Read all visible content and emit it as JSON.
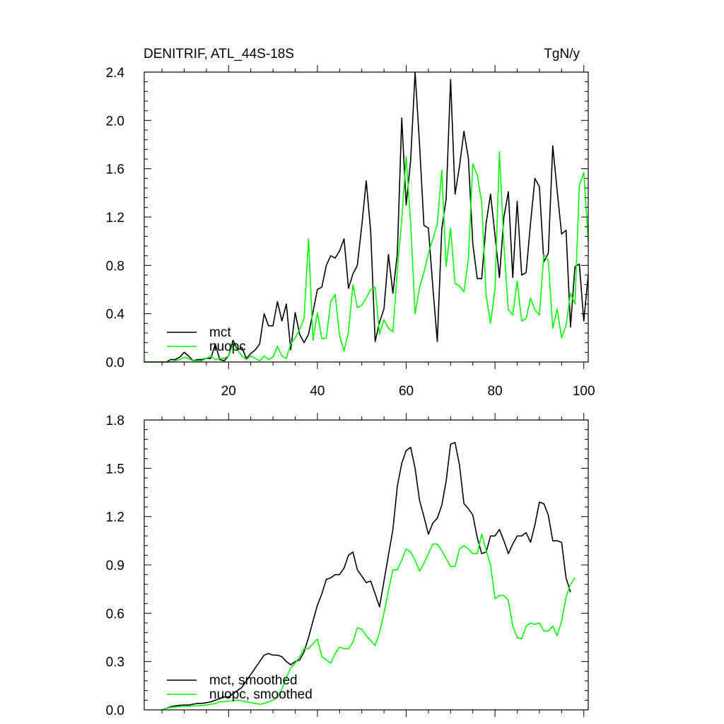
{
  "title_left": "DENITRIF, ATL_44S-18S",
  "title_right": "TgN/y",
  "chart_data": [
    {
      "type": "line",
      "title": "DENITRIF, ATL_44S-18S",
      "units": "TgN/y",
      "xlim": [
        1,
        101
      ],
      "ylim": [
        0,
        2.4
      ],
      "xticks": [
        20,
        40,
        60,
        80,
        100
      ],
      "yticks": [
        0,
        0.4,
        0.8,
        1.2,
        1.6,
        2.0,
        2.4
      ],
      "ytick_labels": [
        "0.0",
        "0.4",
        "0.8",
        "1.2",
        "1.6",
        "2.0",
        "2.4"
      ],
      "legend_location": "bottom-left",
      "series": [
        {
          "name": "mct",
          "color": "#000000",
          "x": [
            1,
            2,
            3,
            4,
            5,
            6,
            7,
            8,
            9,
            10,
            11,
            12,
            13,
            14,
            15,
            16,
            17,
            18,
            19,
            20,
            21,
            22,
            23,
            24,
            25,
            26,
            27,
            28,
            29,
            30,
            31,
            32,
            33,
            34,
            35,
            36,
            37,
            38,
            39,
            40,
            41,
            42,
            43,
            44,
            45,
            46,
            47,
            48,
            49,
            50,
            51,
            52,
            53,
            54,
            55,
            56,
            57,
            58,
            59,
            60,
            61,
            62,
            63,
            64,
            65,
            66,
            67,
            68,
            69,
            70,
            71,
            72,
            73,
            74,
            75,
            76,
            77,
            78,
            79,
            80,
            81,
            82,
            83,
            84,
            85,
            86,
            87,
            88,
            89,
            90,
            91,
            92,
            93,
            94,
            95,
            96,
            97,
            98,
            99,
            100,
            101
          ],
          "values": [
            0,
            0,
            0,
            0,
            0,
            0,
            0.02,
            0.02,
            0.04,
            0.08,
            0.05,
            0.01,
            0.02,
            0.02,
            0.03,
            0.03,
            0.15,
            0.02,
            0.01,
            0.05,
            0.18,
            0.1,
            0.12,
            0.03,
            0.07,
            0.1,
            0.15,
            0.4,
            0.3,
            0.3,
            0.5,
            0.34,
            0.48,
            0.1,
            0.41,
            0.23,
            0.16,
            0.23,
            0.41,
            0.6,
            0.62,
            0.8,
            0.88,
            0.86,
            0.92,
            1.02,
            0.61,
            0.73,
            0.8,
            1.13,
            1.5,
            1.08,
            0.17,
            0.33,
            0.44,
            0.89,
            0.57,
            0.9,
            2.02,
            1.3,
            1.67,
            2.4,
            1.8,
            1.13,
            1.11,
            0.62,
            0.17,
            1.1,
            1.35,
            2.34,
            1.39,
            1.62,
            1.91,
            1.69,
            0.98,
            0.69,
            0.69,
            1.15,
            1.39,
            1.05,
            0.7,
            1.2,
            1.41,
            0.7,
            1.33,
            0.72,
            0.74,
            1.15,
            1.52,
            1.45,
            0.83,
            0.9,
            1.79,
            1.42,
            1.06,
            1.09,
            0.29,
            0.79,
            0.81,
            0.34,
            0.72
          ]
        },
        {
          "name": "nuopc",
          "color": "#00ff00",
          "x": [
            1,
            2,
            3,
            4,
            5,
            6,
            7,
            8,
            9,
            10,
            11,
            12,
            13,
            14,
            15,
            16,
            17,
            18,
            19,
            20,
            21,
            22,
            23,
            24,
            25,
            26,
            27,
            28,
            29,
            30,
            31,
            32,
            33,
            34,
            35,
            36,
            37,
            38,
            39,
            40,
            41,
            42,
            43,
            44,
            45,
            46,
            47,
            48,
            49,
            50,
            51,
            52,
            53,
            54,
            55,
            56,
            57,
            58,
            59,
            60,
            61,
            62,
            63,
            64,
            65,
            66,
            67,
            68,
            69,
            70,
            71,
            72,
            73,
            74,
            75,
            76,
            77,
            78,
            79,
            80,
            81,
            82,
            83,
            84,
            85,
            86,
            87,
            88,
            89,
            90,
            91,
            92,
            93,
            94,
            95,
            96,
            97,
            98,
            99,
            100,
            101
          ],
          "values": [
            0,
            0,
            0,
            0,
            0,
            0,
            0,
            0.01,
            0.02,
            0.04,
            0.03,
            0.01,
            0.01,
            0.01,
            0.03,
            0.05,
            0.02,
            0.03,
            0.03,
            0.05,
            0.15,
            0.1,
            0.05,
            0.02,
            0.05,
            0.03,
            0.01,
            0.05,
            0.02,
            0.04,
            0.13,
            0.05,
            0.03,
            0.15,
            0.2,
            0.27,
            0.36,
            1.02,
            0.18,
            0.41,
            0.19,
            0.2,
            0.5,
            0.56,
            0.22,
            0.09,
            0.25,
            0.64,
            0.45,
            0.47,
            0.53,
            0.6,
            0.62,
            0.23,
            0.35,
            0.28,
            0.25,
            0.76,
            1.18,
            1.7,
            1.15,
            0.4,
            0.62,
            0.74,
            0.9,
            1.02,
            1.14,
            1.59,
            0.79,
            1.11,
            0.65,
            0.63,
            0.58,
            0.85,
            1.64,
            1.55,
            1.32,
            0.55,
            0.32,
            0.6,
            1.74,
            0.97,
            0.43,
            0.39,
            0.67,
            0.34,
            0.36,
            0.53,
            0.43,
            0.39,
            0.89,
            0.84,
            0.28,
            0.44,
            0.2,
            0.3,
            0.57,
            0.48,
            1.46,
            1.57,
            1.0
          ]
        }
      ]
    },
    {
      "type": "line",
      "title": "",
      "xlim": [
        1,
        101
      ],
      "ylim": [
        0,
        1.8
      ],
      "xticks": [
        20,
        40,
        60,
        80,
        100
      ],
      "xtick_labels_shown": false,
      "yticks": [
        0,
        0.3,
        0.6,
        0.9,
        1.2,
        1.5,
        1.8
      ],
      "ytick_labels": [
        "0.0",
        "0.3",
        "0.6",
        "0.9",
        "1.2",
        "1.5",
        "1.8"
      ],
      "legend_location": "bottom-left",
      "series": [
        {
          "name": "mct, smoothed",
          "color": "#000000",
          "x": [
            5,
            6,
            7,
            8,
            9,
            10,
            11,
            12,
            13,
            14,
            15,
            16,
            17,
            18,
            19,
            20,
            21,
            22,
            23,
            24,
            25,
            26,
            27,
            28,
            29,
            30,
            31,
            32,
            33,
            34,
            35,
            36,
            37,
            38,
            39,
            40,
            41,
            42,
            43,
            44,
            45,
            46,
            47,
            48,
            49,
            50,
            51,
            52,
            53,
            54,
            55,
            56,
            57,
            58,
            59,
            60,
            61,
            62,
            63,
            64,
            65,
            66,
            67,
            68,
            69,
            70,
            71,
            72,
            73,
            74,
            75,
            76,
            77,
            78,
            79,
            80,
            81,
            82,
            83,
            84,
            85,
            86,
            87,
            88,
            89,
            90,
            91,
            92,
            93,
            94,
            95,
            96,
            97
          ],
          "values": [
            0,
            0.01,
            0.02,
            0.025,
            0.028,
            0.03,
            0.03,
            0.035,
            0.04,
            0.04,
            0.045,
            0.05,
            0.06,
            0.07,
            0.08,
            0.08,
            0.1,
            0.12,
            0.14,
            0.18,
            0.22,
            0.26,
            0.3,
            0.34,
            0.35,
            0.34,
            0.34,
            0.33,
            0.3,
            0.28,
            0.3,
            0.31,
            0.36,
            0.45,
            0.55,
            0.65,
            0.72,
            0.81,
            0.82,
            0.84,
            0.84,
            0.88,
            0.96,
            0.98,
            0.87,
            0.83,
            0.79,
            0.8,
            0.72,
            0.64,
            0.8,
            0.96,
            1.12,
            1.39,
            1.53,
            1.61,
            1.63,
            1.5,
            1.3,
            1.2,
            1.09,
            1.16,
            1.19,
            1.27,
            1.42,
            1.65,
            1.66,
            1.52,
            1.28,
            1.25,
            1.21,
            1.07,
            0.97,
            0.98,
            1.08,
            1.08,
            1.12,
            1.05,
            0.97,
            1.03,
            1.08,
            1.08,
            1.1,
            1.04,
            1.15,
            1.29,
            1.28,
            1.21,
            1.05,
            1.05,
            1.04,
            0.82,
            0.73
          ]
        },
        {
          "name": "nuopc, smoothed",
          "color": "#00ff00",
          "x": [
            5,
            6,
            7,
            8,
            9,
            10,
            11,
            12,
            13,
            14,
            15,
            16,
            17,
            18,
            19,
            20,
            21,
            22,
            23,
            24,
            25,
            26,
            27,
            28,
            29,
            30,
            31,
            32,
            33,
            34,
            35,
            36,
            37,
            38,
            39,
            40,
            41,
            42,
            43,
            44,
            45,
            46,
            47,
            48,
            49,
            50,
            51,
            52,
            53,
            54,
            55,
            56,
            57,
            58,
            59,
            60,
            61,
            62,
            63,
            64,
            65,
            66,
            67,
            68,
            69,
            70,
            71,
            72,
            73,
            74,
            75,
            76,
            77,
            78,
            79,
            80,
            81,
            82,
            83,
            84,
            85,
            86,
            87,
            88,
            89,
            90,
            91,
            92,
            93,
            94,
            95,
            96,
            97,
            98
          ],
          "values": [
            0,
            0.01,
            0.015,
            0.018,
            0.02,
            0.022,
            0.023,
            0.025,
            0.025,
            0.027,
            0.03,
            0.035,
            0.04,
            0.05,
            0.05,
            0.055,
            0.055,
            0.06,
            0.055,
            0.05,
            0.045,
            0.04,
            0.035,
            0.04,
            0.05,
            0.06,
            0.08,
            0.13,
            0.2,
            0.26,
            0.29,
            0.33,
            0.38,
            0.38,
            0.41,
            0.44,
            0.33,
            0.31,
            0.29,
            0.35,
            0.39,
            0.38,
            0.38,
            0.42,
            0.51,
            0.5,
            0.46,
            0.43,
            0.4,
            0.48,
            0.6,
            0.74,
            0.87,
            0.87,
            0.93,
            1.0,
            0.98,
            0.93,
            0.86,
            0.91,
            0.97,
            1.03,
            1.03,
            0.99,
            0.94,
            0.89,
            0.89,
            1.0,
            1.02,
            1.0,
            0.97,
            0.97,
            1.09,
            0.99,
            0.9,
            0.69,
            0.71,
            0.71,
            0.68,
            0.52,
            0.45,
            0.44,
            0.52,
            0.54,
            0.53,
            0.54,
            0.49,
            0.49,
            0.52,
            0.46,
            0.55,
            0.7,
            0.78,
            0.82
          ]
        }
      ]
    }
  ]
}
